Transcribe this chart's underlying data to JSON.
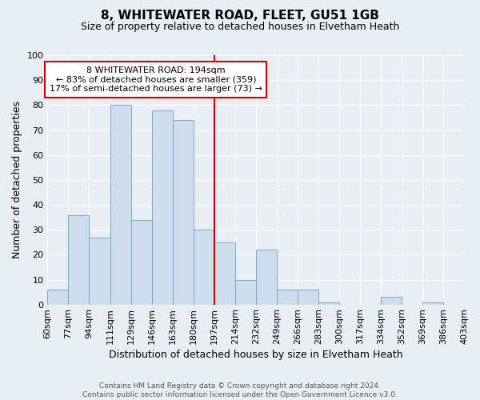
{
  "title": "8, WHITEWATER ROAD, FLEET, GU51 1GB",
  "subtitle": "Size of property relative to detached houses in Elvetham Heath",
  "xlabel": "Distribution of detached houses by size in Elvetham Heath",
  "ylabel": "Number of detached properties",
  "bin_labels": [
    "60sqm",
    "77sqm",
    "94sqm",
    "111sqm",
    "129sqm",
    "146sqm",
    "163sqm",
    "180sqm",
    "197sqm",
    "214sqm",
    "232sqm",
    "249sqm",
    "266sqm",
    "283sqm",
    "300sqm",
    "317sqm",
    "334sqm",
    "352sqm",
    "369sqm",
    "386sqm",
    "403sqm"
  ],
  "bar_heights": [
    6,
    36,
    27,
    80,
    34,
    78,
    74,
    30,
    25,
    10,
    22,
    6,
    6,
    1,
    0,
    0,
    3,
    0,
    1,
    0
  ],
  "bar_color": "#ccdded",
  "bar_edge_color": "#7aaac8",
  "vline_x_index": 8,
  "vline_color": "#cc0000",
  "annotation_title": "8 WHITEWATER ROAD: 194sqm",
  "annotation_line1": "← 83% of detached houses are smaller (359)",
  "annotation_line2": "17% of semi-detached houses are larger (73) →",
  "annotation_box_color": "#ffffff",
  "annotation_box_edge": "#cc0000",
  "footer_line1": "Contains HM Land Registry data © Crown copyright and database right 2024.",
  "footer_line2": "Contains public sector information licensed under the Open Government Licence v3.0.",
  "ylim": [
    0,
    100
  ],
  "yticks": [
    0,
    10,
    20,
    30,
    40,
    50,
    60,
    70,
    80,
    90,
    100
  ],
  "background_color": "#e8eef4",
  "grid_color": "#ffffff",
  "title_fontsize": 11,
  "subtitle_fontsize": 9,
  "ylabel_fontsize": 9,
  "xlabel_fontsize": 9,
  "tick_fontsize": 8,
  "ann_fontsize": 8,
  "footer_fontsize": 6.5
}
